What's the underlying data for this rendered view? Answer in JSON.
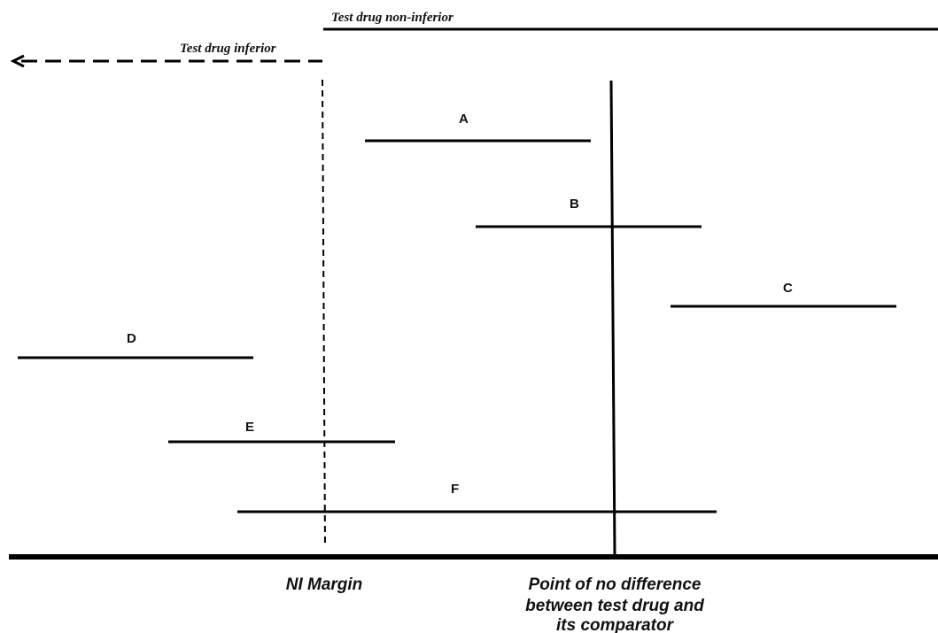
{
  "regions": {
    "non_inferior_label": "Test drug non-inferior",
    "inferior_label": "Test drug inferior"
  },
  "reference_lines": {
    "ni_margin_label": "NI Margin",
    "no_difference_label_lines": [
      "Point of no difference",
      "between test drug and",
      "its comparator"
    ]
  },
  "intervals": [
    {
      "label": "A"
    },
    {
      "label": "B"
    },
    {
      "label": "C"
    },
    {
      "label": "D"
    },
    {
      "label": "E"
    },
    {
      "label": "F"
    }
  ],
  "colors": {
    "line": "#000000",
    "text": "#111111",
    "background": "#ffffff"
  }
}
